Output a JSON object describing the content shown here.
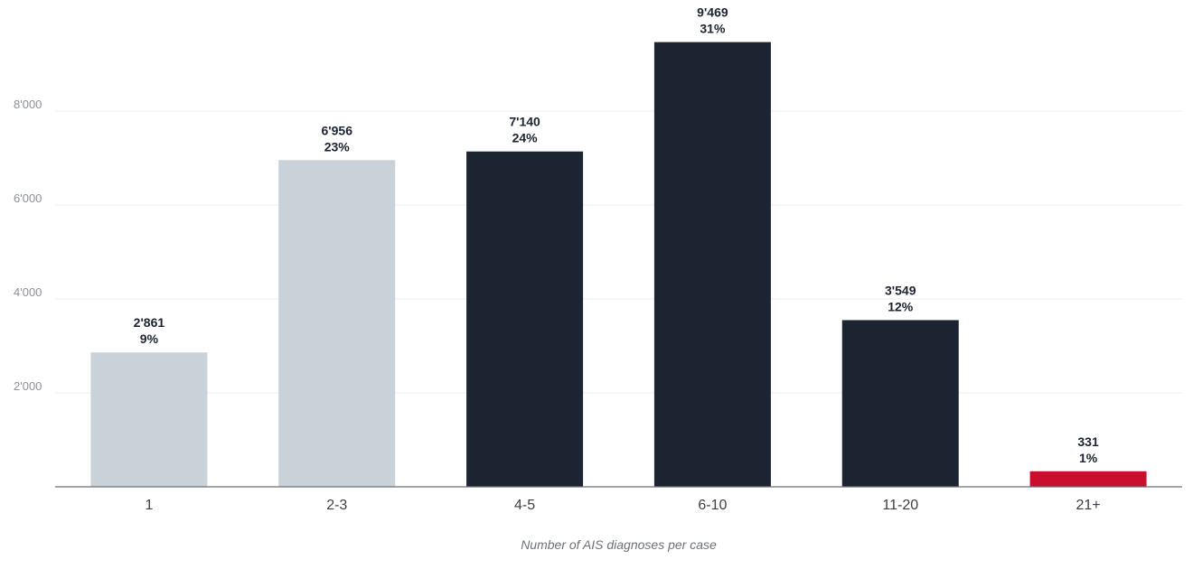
{
  "chart_data": {
    "type": "bar",
    "xlabel": "Number of AIS diagnoses per case",
    "ylabel": "",
    "ylim": [
      0,
      9500
    ],
    "yticks": [
      2000,
      4000,
      6000,
      8000
    ],
    "ytick_labels": [
      "2'000",
      "4'000",
      "6'000",
      "8'000"
    ],
    "grid": true,
    "categories": [
      "1",
      "2-3",
      "4-5",
      "6-10",
      "11-20",
      "21+"
    ],
    "values": [
      2861,
      6956,
      7140,
      9469,
      3549,
      331
    ],
    "value_labels": [
      "2'861",
      "6'956",
      "7'140",
      "9'469",
      "3'549",
      "331"
    ],
    "percent_labels": [
      "9%",
      "23%",
      "24%",
      "31%",
      "12%",
      "1%"
    ],
    "colors": [
      "#c9d2d8",
      "#c9d2d8",
      "#1c2331",
      "#1c2331",
      "#1c2331",
      "#c8102e"
    ]
  }
}
